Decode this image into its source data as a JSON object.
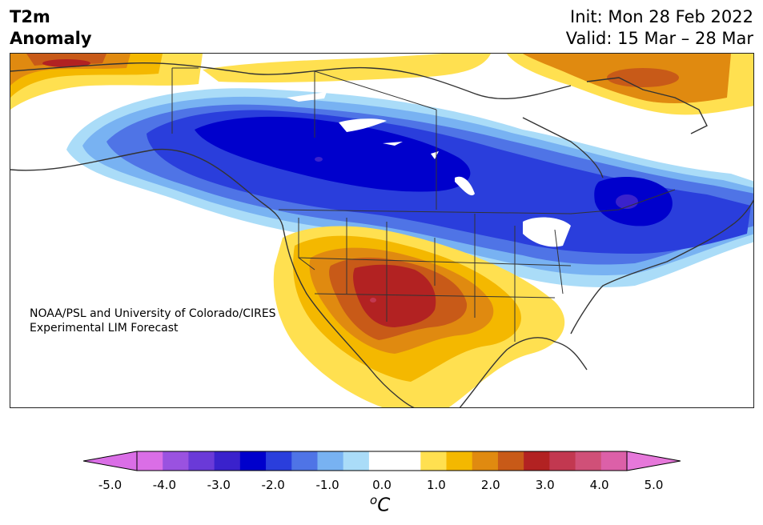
{
  "title": {
    "line1": "T2m",
    "line2": "Anomaly"
  },
  "dates": {
    "init": "Init: Mon 28 Feb 2022",
    "valid": "Valid: 15 Mar – 28 Mar"
  },
  "credit": {
    "line1": "NOAA/PSL and University of Colorado/CIRES",
    "line2": "Experimental LIM Forecast"
  },
  "colorbar": {
    "ticks": [
      "-5.0",
      "-4.0",
      "-3.0",
      "-2.0",
      "-1.0",
      "0.0",
      "1.0",
      "2.0",
      "3.0",
      "4.0",
      "5.0"
    ],
    "unit_sup": "o",
    "unit": "C",
    "colors": [
      "#da6ee6",
      "#9a52e0",
      "#6a3ad8",
      "#3a22cc",
      "#0000cc",
      "#2a3edc",
      "#4f74e6",
      "#78b2f2",
      "#aadcf8",
      "#ffffff",
      "#ffffff",
      "#ffe050",
      "#f4b800",
      "#e08a10",
      "#c85a18",
      "#b22222",
      "#c23850",
      "#d05078",
      "#dc60a8"
    ],
    "extend_low": "#da6ee6",
    "extend_high": "#e678da"
  }
}
